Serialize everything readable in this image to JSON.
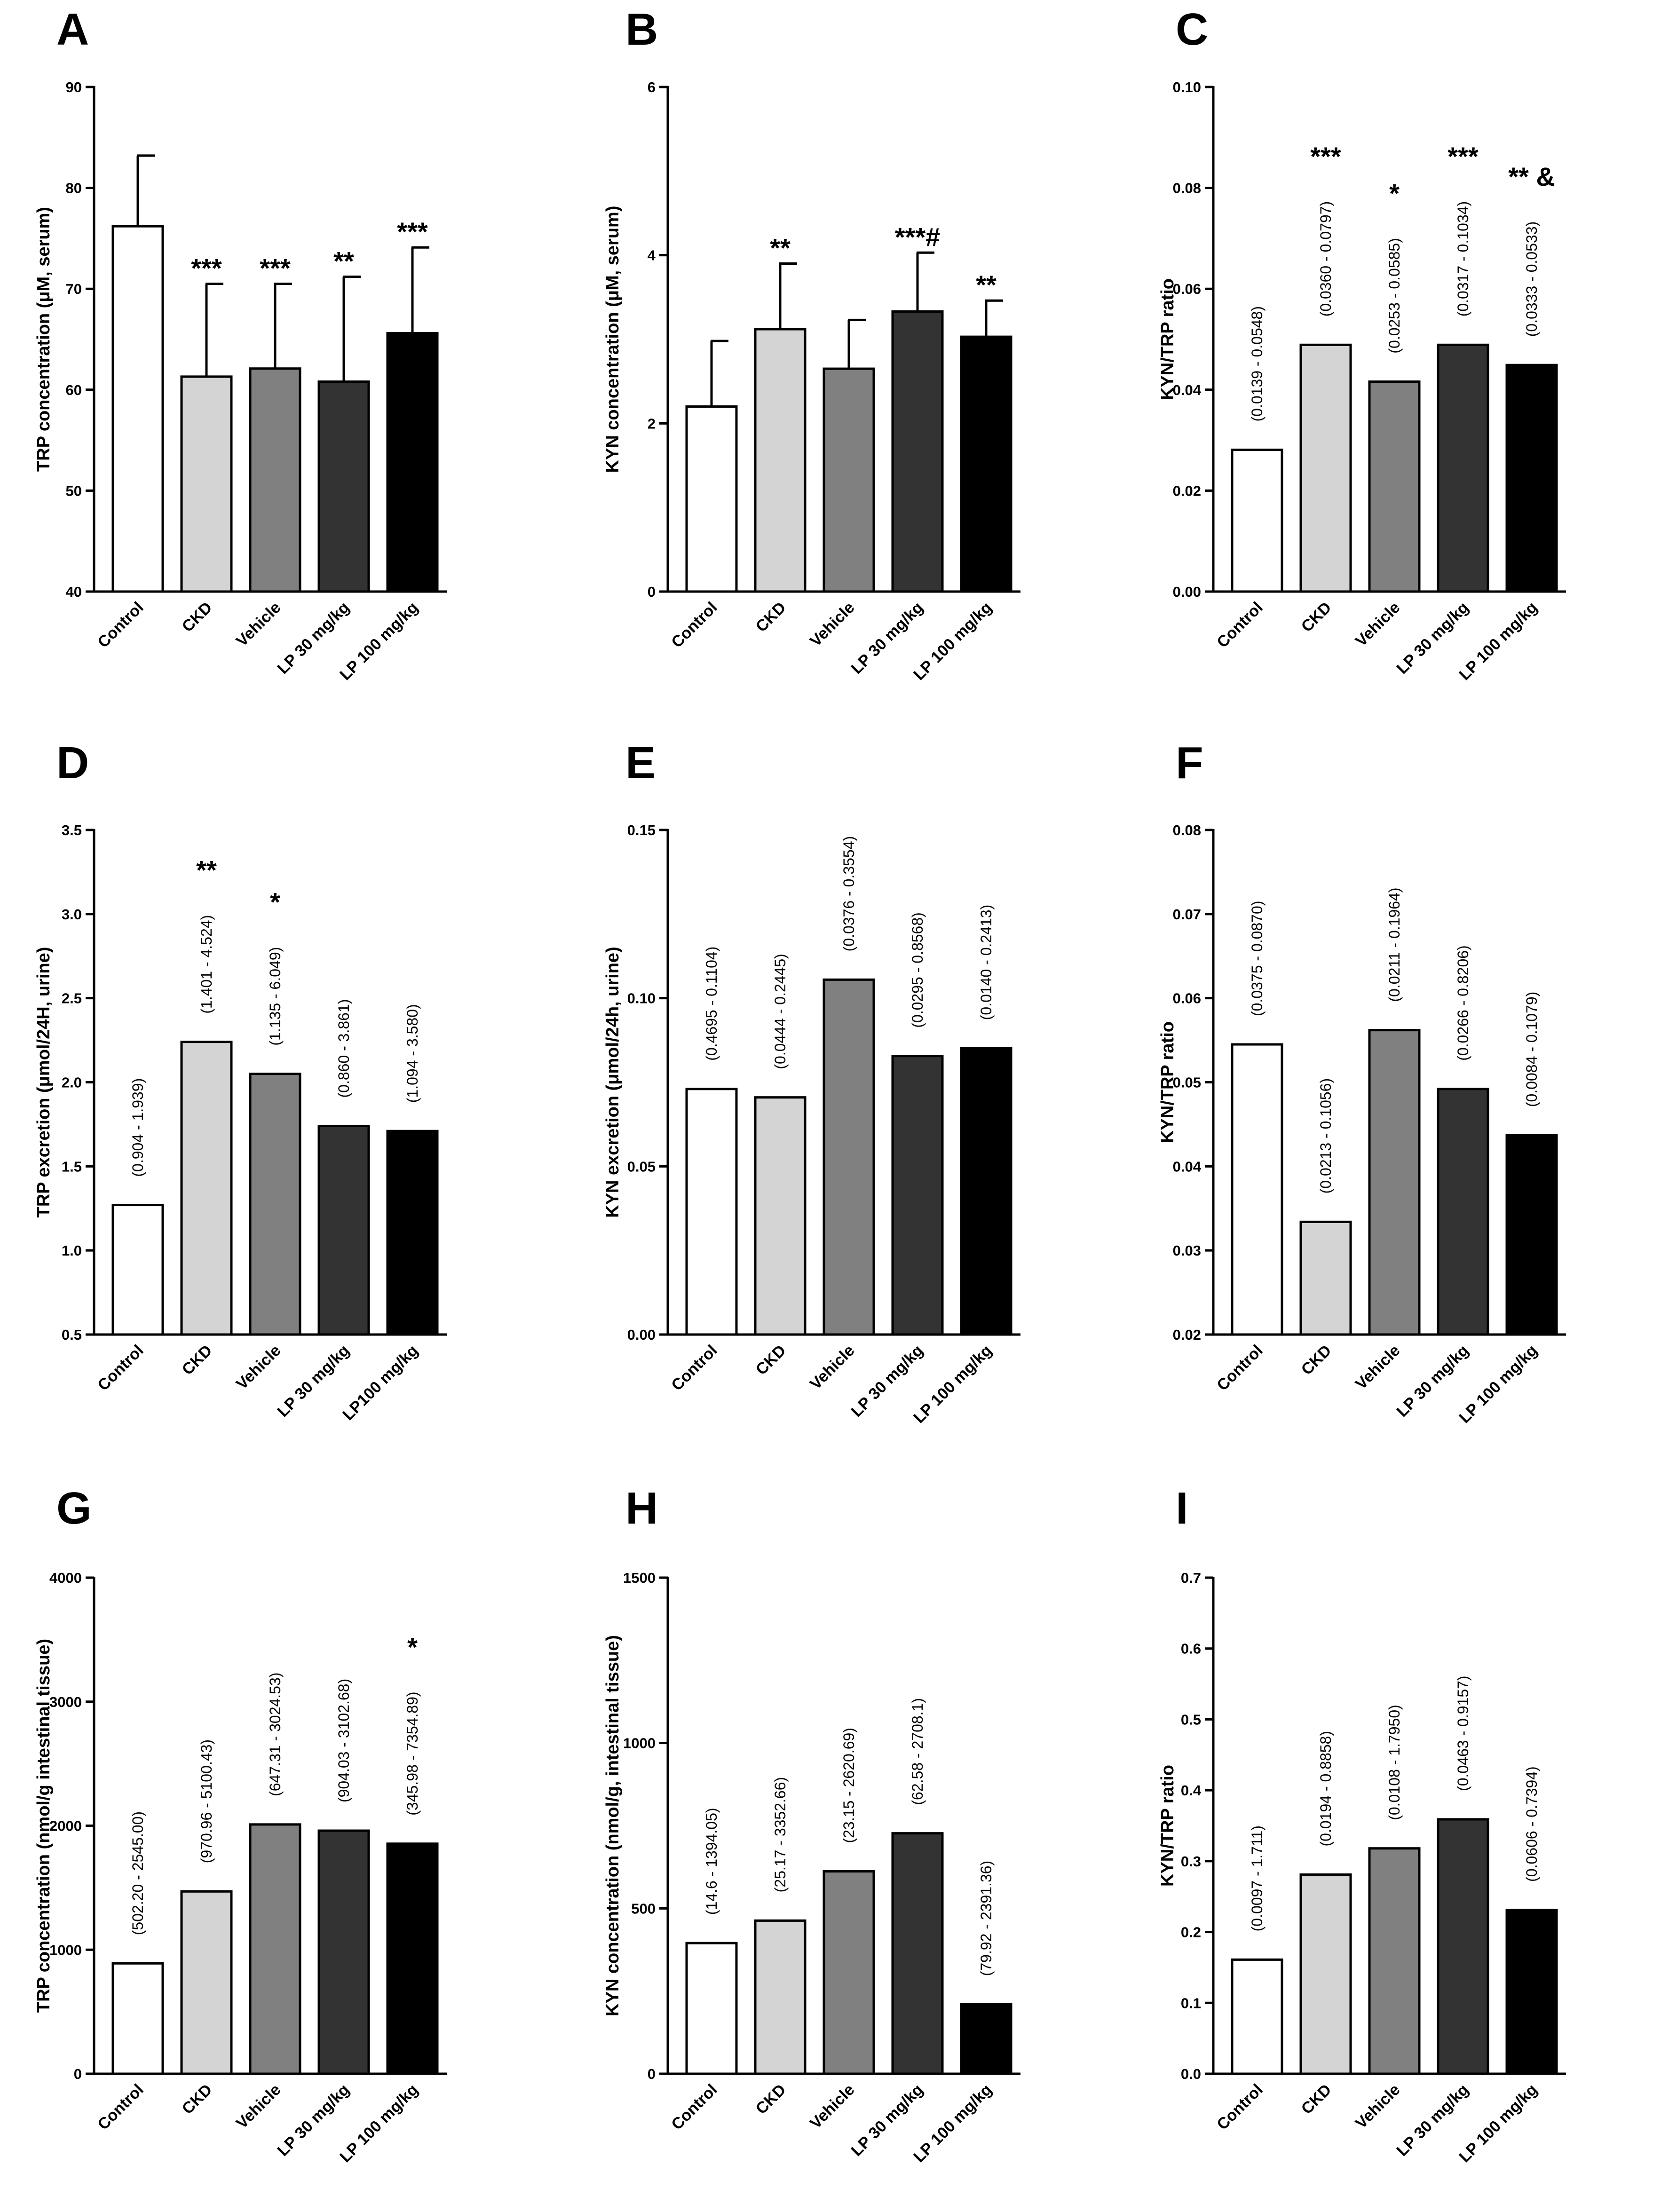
{
  "figure": {
    "title": ""
  },
  "colors": {
    "Control": "#ffffff",
    "CKD": "#d4d4d4",
    "Vehicle": "#808080",
    "LP30": "#333333",
    "LP100": "#000000"
  },
  "chart_data": [
    {
      "panel": "A",
      "type": "bar",
      "ylabel": "TRP concentration (μM, serum)",
      "ylim": [
        40,
        90
      ],
      "yticks": [
        "40",
        "50",
        "60",
        "70",
        "80",
        "90"
      ],
      "categories": [
        "Control",
        "CKD",
        "Vehicle",
        "LP 30 mg/kg",
        "LP 100 mg/kg"
      ],
      "values": [
        76.2,
        61.3,
        62.1,
        60.8,
        65.6
      ],
      "errors": [
        7.0,
        9.2,
        8.4,
        10.4,
        8.5
      ],
      "significance": [
        "",
        "***",
        "***",
        "**",
        "***"
      ],
      "ranges": null
    },
    {
      "panel": "B",
      "type": "bar",
      "ylabel": "KYN concentration (μM, serum)",
      "ylim": [
        0,
        6
      ],
      "yticks": [
        "0",
        "2",
        "4",
        "6"
      ],
      "categories": [
        "Control",
        "CKD",
        "Vehicle",
        "LP 30 mg/kg",
        "LP 100 mg/kg"
      ],
      "values": [
        2.2,
        3.12,
        2.65,
        3.33,
        3.03
      ],
      "errors": [
        0.78,
        0.78,
        0.58,
        0.7,
        0.43
      ],
      "significance": [
        "",
        "**",
        "",
        "***#",
        "**"
      ],
      "ranges": null
    },
    {
      "panel": "C",
      "type": "bar",
      "ylabel": "KYN/TRP ratio",
      "ylim": [
        0,
        0.1
      ],
      "yticks": [
        "0.00",
        "0.02",
        "0.04",
        "0.06",
        "0.08",
        "0.10"
      ],
      "categories": [
        "Control",
        "CKD",
        "Vehicle",
        "LP 30 mg/kg",
        "LP 100 mg/kg"
      ],
      "values": [
        0.0281,
        0.0489,
        0.0416,
        0.0489,
        0.0449
      ],
      "errors": null,
      "significance": [
        "",
        "***",
        "*",
        "***",
        "** &"
      ],
      "ranges": [
        "(0.0139 - 0.0548)",
        "(0.0360 - 0.0797)",
        "(0.0253 - 0.0585)",
        "(0.0317 - 0.1034)",
        "(0.0333 - 0.0533)"
      ]
    },
    {
      "panel": "D",
      "type": "bar",
      "ylabel": "TRP excretion (μmol/24H, urine)",
      "ylim": [
        0.5,
        3.5
      ],
      "yticks": [
        "0.5",
        "1.0",
        "1.5",
        "2.0",
        "2.5",
        "3.0",
        "3.5"
      ],
      "categories": [
        "Control",
        "CKD",
        "Vehicle",
        "LP 30 mg/kg",
        "LP100 mg/kg"
      ],
      "values": [
        1.27,
        2.24,
        2.05,
        1.74,
        1.71
      ],
      "errors": null,
      "significance": [
        "",
        "**",
        "*",
        "",
        ""
      ],
      "ranges": [
        "(0.904 - 1.939)",
        "(1.401 - 4.524)",
        "(1.135 - 6.049)",
        "(0.860 - 3.861)",
        "(1.094 - 3.580)"
      ]
    },
    {
      "panel": "E",
      "type": "bar",
      "ylabel": "KYN excretion (μmol/24h, urine)",
      "ylim": [
        0,
        0.15
      ],
      "yticks": [
        "0.00",
        "0.05",
        "0.10",
        "0.15"
      ],
      "categories": [
        "Control",
        "CKD",
        "Vehicle",
        "LP 30 mg/kg",
        "LP 100 mg/kg"
      ],
      "values": [
        0.073,
        0.0705,
        0.1055,
        0.0828,
        0.0851
      ],
      "errors": null,
      "significance": [
        "",
        "",
        "",
        "",
        ""
      ],
      "ranges": [
        "(0.4695 - 0.1104)",
        "(0.0444 - 0.2445)",
        "(0.0376 - 0.3554)",
        "(0.0295 - 0.8568)",
        "(0.0140 - 0.2413)"
      ]
    },
    {
      "panel": "F",
      "type": "bar",
      "ylabel": "KYN/TRP ratio",
      "ylim": [
        0.02,
        0.08
      ],
      "yticks": [
        "0.02",
        "0.03",
        "0.04",
        "0.05",
        "0.06",
        "0.07",
        "0.08"
      ],
      "categories": [
        "Control",
        "CKD",
        "Vehicle",
        "LP 30 mg/kg",
        "LP 100 mg/kg"
      ],
      "values": [
        0.0545,
        0.0334,
        0.0562,
        0.0492,
        0.0437
      ],
      "errors": null,
      "significance": [
        "",
        "",
        "",
        "",
        ""
      ],
      "ranges": [
        "(0.0375 - 0.0870)",
        "(0.0213 - 0.1056)",
        "(0.0211 - 0.1964)",
        "(0.0266 - 0.8206)",
        "(0.0084 - 0.1079)"
      ]
    },
    {
      "panel": "G",
      "type": "bar",
      "ylabel": "TRP concentration (nmol/g intestinal tissue)",
      "ylim": [
        0,
        4000
      ],
      "yticks": [
        "0",
        "1000",
        "2000",
        "3000",
        "4000"
      ],
      "categories": [
        "Control",
        "CKD",
        "Vehicle",
        "LP 30 mg/kg",
        "LP 100 mg/kg"
      ],
      "values": [
        890,
        1470,
        2010,
        1960,
        1855
      ],
      "errors": null,
      "significance": [
        "",
        "",
        "",
        "",
        "*"
      ],
      "ranges": [
        "(502.20 - 2545.00)",
        "(970.96 - 5100.43)",
        "(647.31 - 3024.53)",
        "(904.03 - 3102.68)",
        "(345.98 - 7354.89)"
      ]
    },
    {
      "panel": "H",
      "type": "bar",
      "ylabel": "KYN concentration (nmol/g, intestinal tissue)",
      "ylim": [
        0,
        1500
      ],
      "yticks": [
        "0",
        "500",
        "1000",
        "1500"
      ],
      "categories": [
        "Control",
        "CKD",
        "Vehicle",
        "LP 30 mg/kg",
        "LP 100 mg/kg"
      ],
      "values": [
        395,
        463,
        612,
        727,
        210
      ],
      "errors": null,
      "significance": [
        "",
        "",
        "",
        "",
        ""
      ],
      "ranges": [
        "(14.6 - 1394.05)",
        "(25.17 - 3352.66)",
        "(23.15 - 2620.69)",
        "(62.58 - 2708.1)",
        "(79.92 - 2391.36)"
      ]
    },
    {
      "panel": "I",
      "type": "bar",
      "ylabel": "KYN/TRP ratio",
      "ylim": [
        0,
        0.7
      ],
      "yticks": [
        "0.0",
        "0.1",
        "0.2",
        "0.3",
        "0.4",
        "0.5",
        "0.6",
        "0.7"
      ],
      "categories": [
        "Control",
        "CKD",
        "Vehicle",
        "LP 30 mg/kg",
        "LP 100 mg/kg"
      ],
      "values": [
        0.161,
        0.281,
        0.318,
        0.359,
        0.231
      ],
      "errors": null,
      "significance": [
        "",
        "",
        "",
        "",
        ""
      ],
      "ranges": [
        "(0.0097 - 1.711)",
        "(0.0194 - 0.8858)",
        "(0.0108 - 1.7950)",
        "(0.0463 - 0.9157)",
        "(0.0606 - 0.7394)"
      ]
    }
  ]
}
